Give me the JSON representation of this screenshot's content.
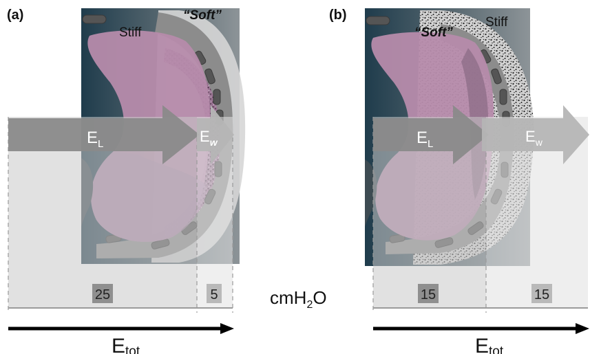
{
  "figure": {
    "panels": [
      {
        "id": "a",
        "panel_label": "(a)",
        "lung_stiffness_label": "Stiff",
        "wall_stiffness_label": "“Soft”",
        "lung_arrow": {
          "symbol": "E",
          "subscript": "L"
        },
        "wall_arrow": {
          "symbol": "E",
          "subscript": "w"
        },
        "lung_value": "25",
        "wall_value": "5",
        "total": {
          "symbol": "E",
          "subscript": "tot"
        }
      },
      {
        "id": "b",
        "panel_label": "(b)",
        "lung_stiffness_label": "“Soft”",
        "wall_stiffness_label": "Stiff",
        "lung_arrow": {
          "symbol": "E",
          "subscript": "L"
        },
        "wall_arrow": {
          "symbol": "E",
          "subscript": "w"
        },
        "lung_value": "15",
        "wall_value": "15",
        "total": {
          "symbol": "E",
          "subscript": "tot"
        }
      }
    ],
    "unit": {
      "base": "cmH",
      "subscript": "2",
      "tail": "O"
    },
    "colors": {
      "lung_tissue": "#b68bab",
      "dark_background": "#1f3c4c",
      "chest_wall_grey": "#8c8c8c",
      "arrow_lung": "#8a8a8a",
      "arrow_wall": "#b5b5b5",
      "value_box": "#8f8f8f",
      "speckle": "#222222"
    }
  }
}
